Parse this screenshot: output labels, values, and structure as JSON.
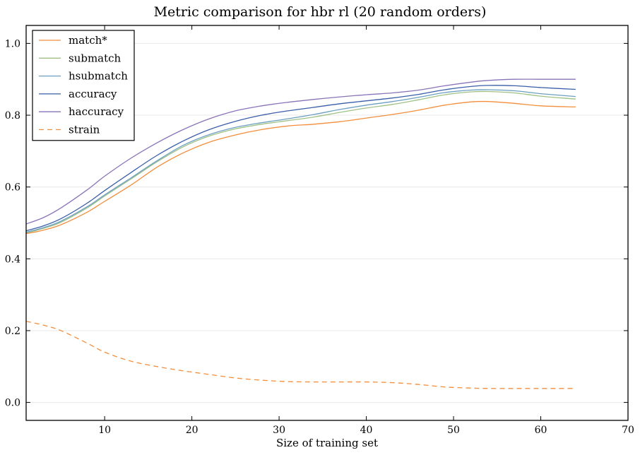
{
  "chart_data": {
    "type": "line",
    "title": "Metric comparison for hbr rl (20 random orders)",
    "xlabel": "Size of training set",
    "ylabel": "",
    "xlim": [
      1,
      70
    ],
    "ylim": [
      -0.05,
      1.05
    ],
    "xticks": [
      10,
      20,
      30,
      40,
      50,
      60,
      70
    ],
    "yticks": [
      0.0,
      0.2,
      0.4,
      0.6,
      0.8,
      1.0
    ],
    "xtick_labels": [
      "10",
      "20",
      "30",
      "40",
      "50",
      "60",
      "70"
    ],
    "ytick_labels": [
      "0.0",
      "0.2",
      "0.4",
      "0.6",
      "0.8",
      "1.0"
    ],
    "grid": "horizontal",
    "legend_position": "top-left",
    "series": [
      {
        "name": "match*",
        "color": "#f28e3c",
        "dash": "solid",
        "x": [
          1,
          3,
          5,
          8,
          10,
          13,
          16,
          19,
          22,
          25,
          28,
          31,
          34,
          37,
          40,
          43,
          46,
          49,
          52,
          54,
          57,
          60,
          64
        ],
        "y": [
          0.47,
          0.48,
          0.495,
          0.53,
          0.56,
          0.605,
          0.655,
          0.695,
          0.725,
          0.745,
          0.76,
          0.77,
          0.775,
          0.782,
          0.792,
          0.802,
          0.814,
          0.828,
          0.837,
          0.838,
          0.833,
          0.826,
          0.823
        ]
      },
      {
        "name": "submatch",
        "color": "#9fc185",
        "dash": "solid",
        "x": [
          1,
          3,
          5,
          8,
          10,
          13,
          16,
          19,
          22,
          25,
          28,
          31,
          34,
          37,
          40,
          43,
          46,
          49,
          52,
          54,
          57,
          60,
          64
        ],
        "y": [
          0.472,
          0.485,
          0.502,
          0.542,
          0.575,
          0.622,
          0.67,
          0.712,
          0.742,
          0.762,
          0.775,
          0.785,
          0.795,
          0.808,
          0.82,
          0.83,
          0.843,
          0.857,
          0.865,
          0.866,
          0.862,
          0.853,
          0.845
        ]
      },
      {
        "name": "hsubmatch",
        "color": "#6b9fc2",
        "dash": "solid",
        "x": [
          1,
          3,
          5,
          8,
          10,
          13,
          16,
          19,
          22,
          25,
          28,
          31,
          34,
          37,
          40,
          43,
          46,
          49,
          52,
          54,
          57,
          60,
          64
        ],
        "y": [
          0.474,
          0.487,
          0.505,
          0.545,
          0.578,
          0.625,
          0.673,
          0.716,
          0.746,
          0.766,
          0.779,
          0.79,
          0.802,
          0.816,
          0.828,
          0.838,
          0.85,
          0.863,
          0.87,
          0.871,
          0.868,
          0.86,
          0.852
        ]
      },
      {
        "name": "accuracy",
        "color": "#3a5ea8",
        "dash": "solid",
        "x": [
          1,
          3,
          5,
          8,
          10,
          13,
          16,
          19,
          22,
          25,
          28,
          31,
          34,
          37,
          40,
          43,
          46,
          49,
          52,
          54,
          57,
          60,
          64
        ],
        "y": [
          0.478,
          0.492,
          0.512,
          0.555,
          0.59,
          0.64,
          0.688,
          0.728,
          0.76,
          0.783,
          0.8,
          0.812,
          0.822,
          0.832,
          0.84,
          0.848,
          0.858,
          0.871,
          0.88,
          0.883,
          0.882,
          0.877,
          0.872
        ]
      },
      {
        "name": "haccuracy",
        "color": "#8a73b8",
        "dash": "solid",
        "x": [
          1,
          3,
          5,
          8,
          10,
          13,
          16,
          19,
          22,
          25,
          28,
          31,
          34,
          37,
          40,
          43,
          46,
          49,
          52,
          54,
          57,
          60,
          64
        ],
        "y": [
          0.497,
          0.515,
          0.542,
          0.592,
          0.63,
          0.68,
          0.723,
          0.76,
          0.79,
          0.812,
          0.826,
          0.836,
          0.844,
          0.851,
          0.857,
          0.862,
          0.87,
          0.882,
          0.892,
          0.897,
          0.9,
          0.9,
          0.9
        ]
      },
      {
        "name": "strain",
        "color": "#f28e3c",
        "dash": "dashed",
        "x": [
          1,
          3,
          5,
          8,
          10,
          13,
          16,
          19,
          22,
          25,
          28,
          31,
          34,
          37,
          40,
          43,
          46,
          49,
          52,
          54,
          57,
          60,
          64
        ],
        "y": [
          0.226,
          0.215,
          0.2,
          0.165,
          0.14,
          0.115,
          0.1,
          0.088,
          0.078,
          0.068,
          0.062,
          0.058,
          0.057,
          0.057,
          0.057,
          0.055,
          0.05,
          0.043,
          0.04,
          0.039,
          0.039,
          0.039,
          0.039
        ]
      }
    ]
  }
}
